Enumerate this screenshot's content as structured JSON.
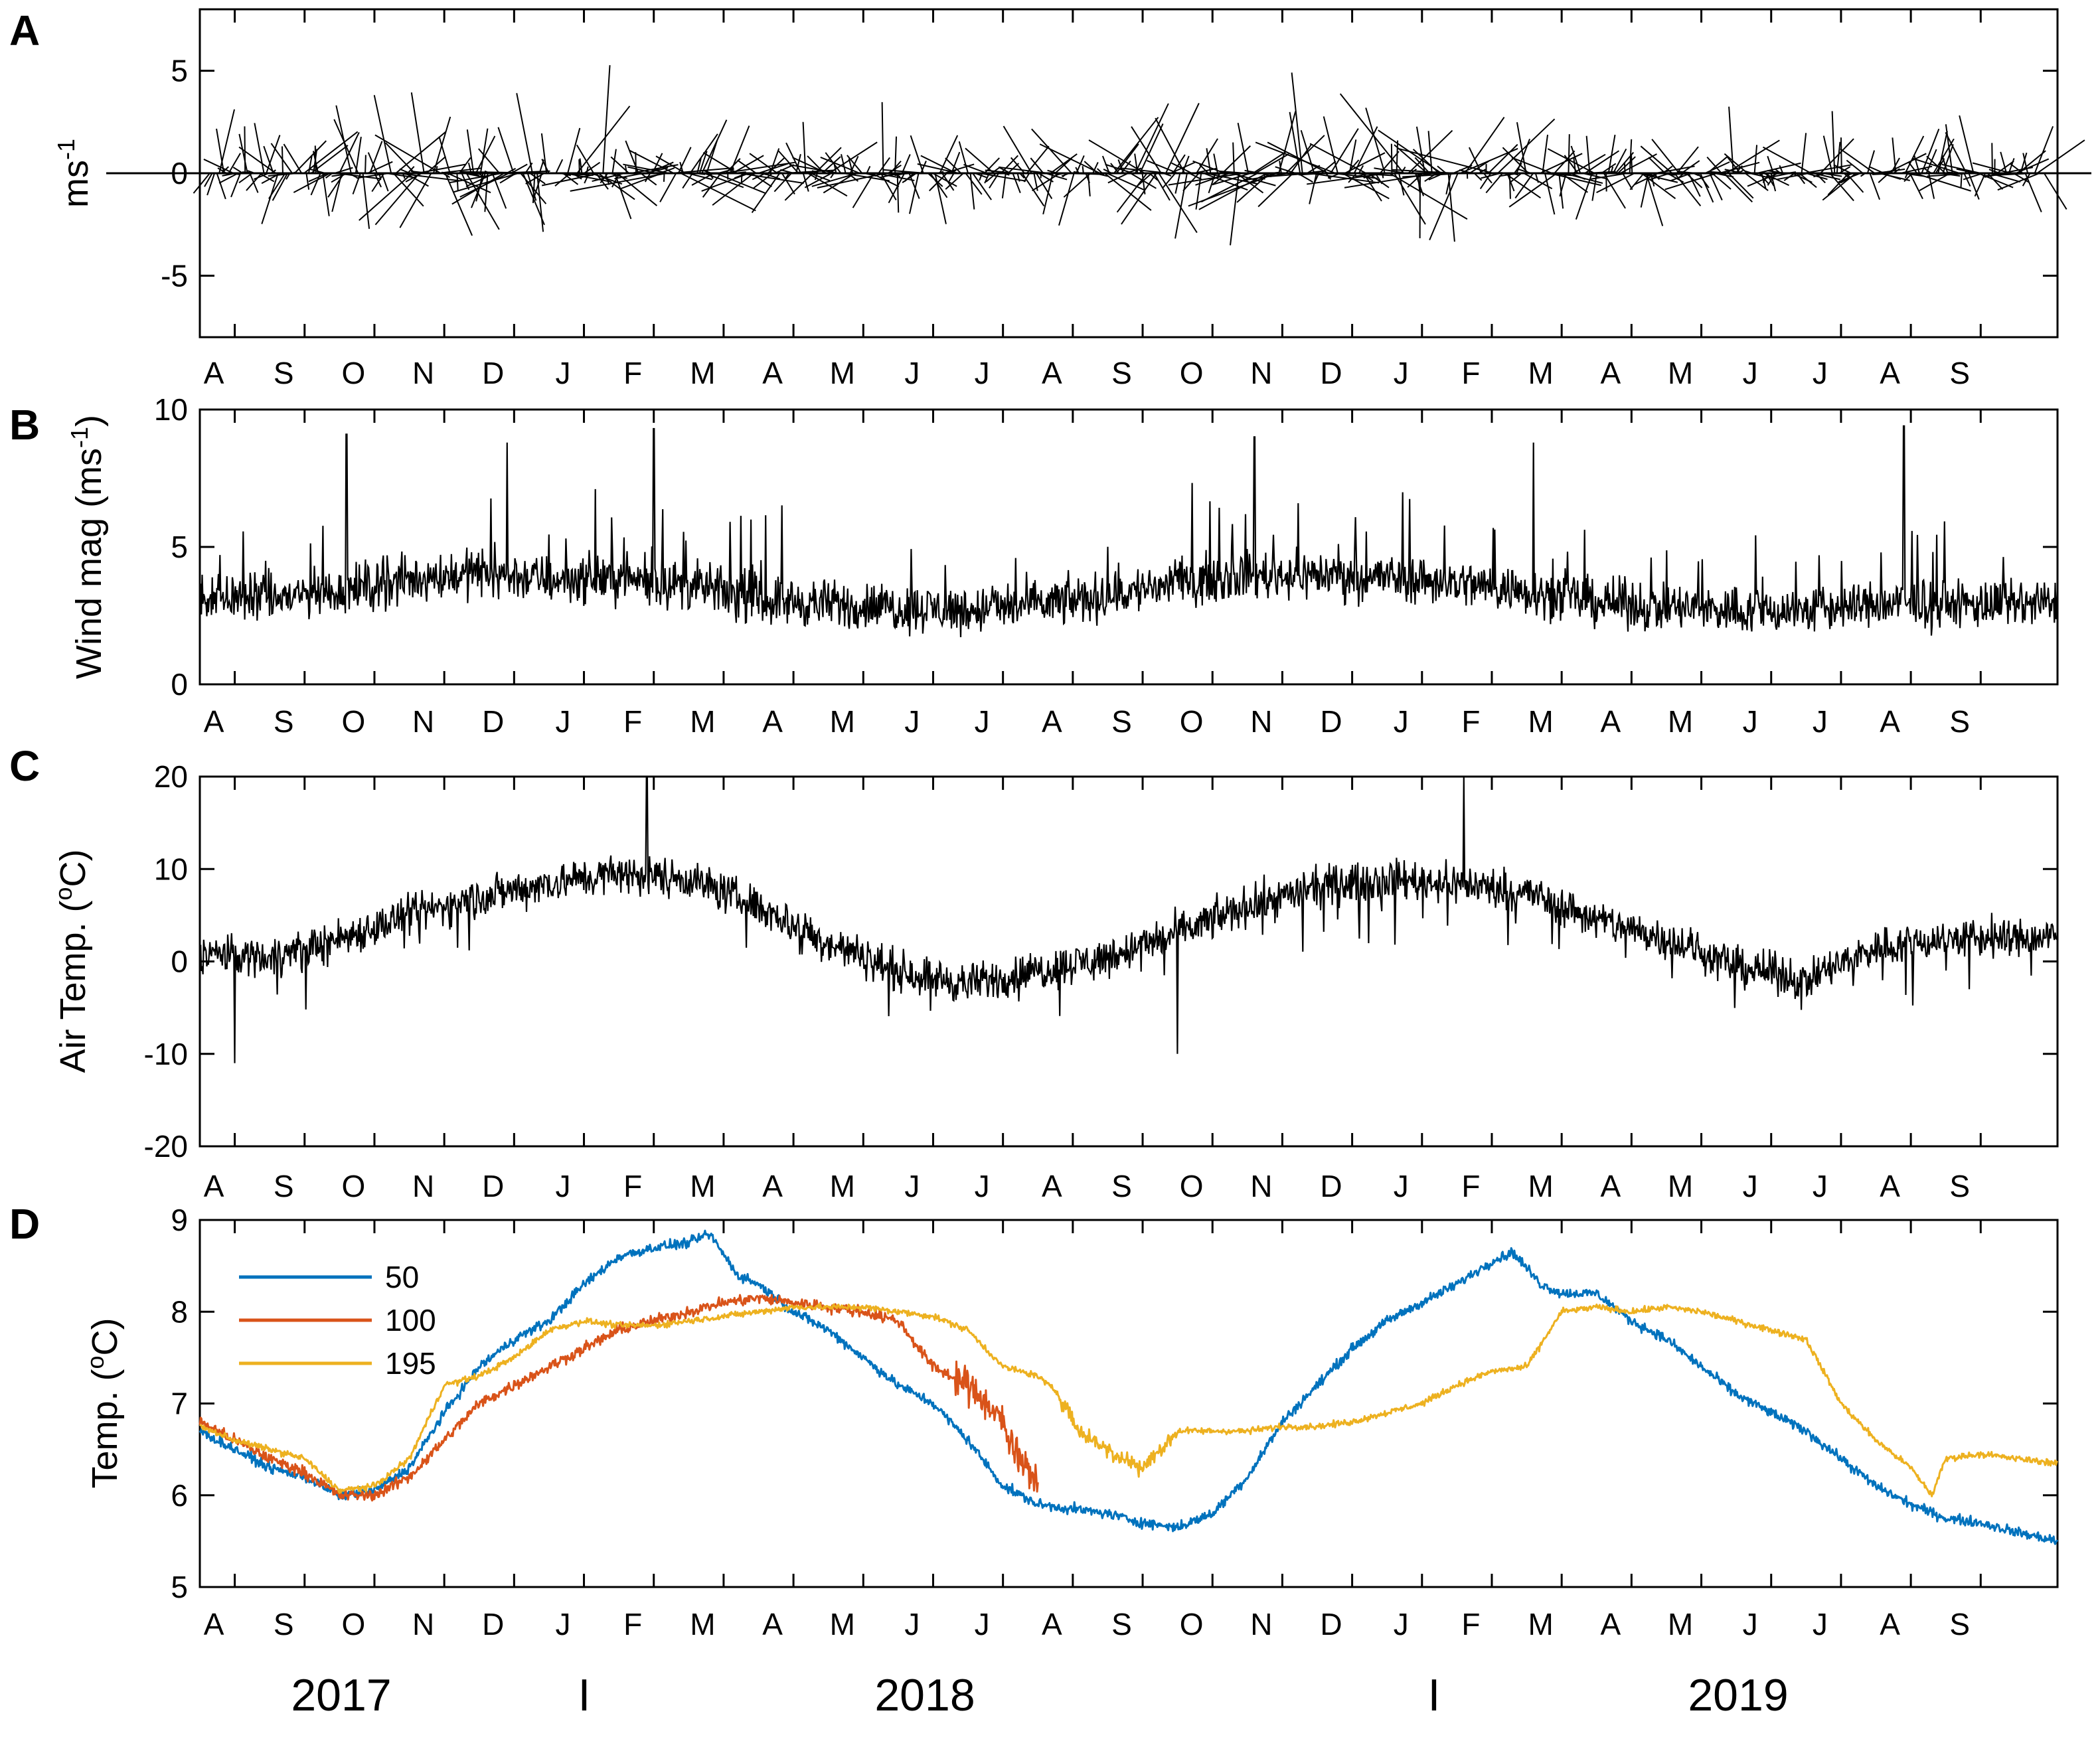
{
  "colors": {
    "axis": "#000000",
    "series_50": "#0072BD",
    "series_100": "#D95319",
    "series_195": "#EDB120"
  },
  "month_sequence": [
    "A",
    "S",
    "O",
    "N",
    "D",
    "J",
    "F",
    "M",
    "A",
    "M",
    "J",
    "J",
    "A",
    "S",
    "O",
    "N",
    "D",
    "J",
    "F",
    "M",
    "A",
    "M",
    "J",
    "J",
    "A",
    "S"
  ],
  "year_labels": {
    "y2017": "2017",
    "y2018": "2018",
    "y2019": "2019",
    "separator": "I"
  },
  "chart_data": [
    {
      "panel": "A",
      "type": "line",
      "subtype": "wind-stick-plot",
      "ylabel": "ms-1",
      "ylabel_base": "ms",
      "ylabel_sup": "-1",
      "yticks": [
        "5",
        "0",
        "-5"
      ],
      "ytick_values": [
        5,
        0,
        -5
      ],
      "ylim": [
        -8,
        8
      ],
      "xlim_months": [
        0,
        26.6
      ],
      "x_tick_labels": [
        "A",
        "S",
        "O",
        "N",
        "D",
        "J",
        "F",
        "M",
        "A",
        "M",
        "J",
        "J",
        "A",
        "S",
        "O",
        "N",
        "D",
        "J",
        "F",
        "M",
        "A",
        "M",
        "J",
        "J",
        "A",
        "S"
      ],
      "stick_count": 780,
      "envelope_ms": [
        4.0,
        3.8,
        4.2,
        5.2,
        5.6,
        5.4,
        5.8,
        5.2,
        4.2,
        4.0,
        3.6,
        3.2,
        3.6,
        4.2,
        5.2,
        5.8,
        5.6,
        6.2,
        5.6,
        4.8,
        4.0,
        3.8,
        3.6,
        3.6,
        4.0,
        4.0
      ]
    },
    {
      "panel": "B",
      "type": "line",
      "ylabel": "Wind mag (ms-1)",
      "ylabel_base": "Wind mag (ms",
      "ylabel_sup": "-1",
      "ylabel_close": ")",
      "yticks": [
        "10",
        "5",
        "0"
      ],
      "ytick_values": [
        10,
        5,
        0
      ],
      "ylim": [
        0,
        10
      ],
      "x_tick_labels": [
        "A",
        "S",
        "O",
        "N",
        "D",
        "J",
        "F",
        "M",
        "A",
        "M",
        "J",
        "J",
        "A",
        "S",
        "O",
        "N",
        "D",
        "J",
        "F",
        "M",
        "A",
        "M",
        "J",
        "J",
        "A",
        "S"
      ],
      "monthly_mean_ms": [
        3.2,
        3.1,
        3.4,
        3.8,
        4.1,
        3.8,
        3.9,
        3.6,
        3.1,
        2.9,
        2.8,
        2.7,
        2.9,
        3.2,
        3.7,
        4.0,
        4.0,
        3.9,
        3.7,
        3.4,
        3.0,
        2.8,
        2.7,
        2.7,
        2.9,
        2.9
      ],
      "peaks": [
        {
          "month": 2.1,
          "value": 9.1
        },
        {
          "month": 4.4,
          "value": 8.8
        },
        {
          "month": 6.5,
          "value": 9.3
        },
        {
          "month": 15.1,
          "value": 9.0
        },
        {
          "month": 19.1,
          "value": 8.8
        },
        {
          "month": 24.4,
          "value": 9.4
        }
      ]
    },
    {
      "panel": "C",
      "type": "line",
      "ylabel": "Air Temp. (oC)",
      "ylabel_base": "Air Temp. (",
      "ylabel_sup": "o",
      "ylabel_close": "C)",
      "yticks": [
        "20",
        "10",
        "0",
        "-10",
        "-20"
      ],
      "ytick_values": [
        20,
        10,
        0,
        -10,
        -20
      ],
      "ylim": [
        -20,
        20
      ],
      "x_tick_labels": [
        "A",
        "S",
        "O",
        "N",
        "D",
        "J",
        "F",
        "M",
        "A",
        "M",
        "J",
        "J",
        "A",
        "S",
        "O",
        "N",
        "D",
        "J",
        "F",
        "M",
        "A",
        "M",
        "J",
        "J",
        "A",
        "S"
      ],
      "monthly_mean_C": [
        1.0,
        0.5,
        2.5,
        5.0,
        7.0,
        8.5,
        9.5,
        9.0,
        6.0,
        2.0,
        -1.0,
        -2.5,
        -1.0,
        0.5,
        3.0,
        6.0,
        8.0,
        9.0,
        8.5,
        7.5,
        4.5,
        2.5,
        -0.5,
        -2.0,
        1.5,
        2.5
      ],
      "spikes": [
        {
          "month": 18.1,
          "value": 22.0
        },
        {
          "month": 6.4,
          "value": 20.0
        },
        {
          "month": 0.5,
          "value": -11.0
        },
        {
          "month": 14.0,
          "value": -10.0
        }
      ]
    },
    {
      "panel": "D",
      "type": "line",
      "ylabel": "Temp. (oC)",
      "ylabel_base": "Temp. (",
      "ylabel_sup": "o",
      "ylabel_close": "C)",
      "yticks": [
        "9",
        "8",
        "7",
        "6",
        "5"
      ],
      "ytick_values": [
        9,
        8,
        7,
        6,
        5
      ],
      "ylim": [
        5,
        9
      ],
      "x_tick_labels": [
        "A",
        "S",
        "O",
        "N",
        "D",
        "J",
        "F",
        "M",
        "A",
        "M",
        "J",
        "J",
        "A",
        "S",
        "O",
        "N",
        "D",
        "J",
        "F",
        "M",
        "A",
        "M",
        "J",
        "J",
        "A",
        "S"
      ],
      "legend_position": "top-left",
      "x_unit": "months since start of August 2017",
      "series": [
        {
          "name": "50",
          "points": [
            [
              0,
              6.7
            ],
            [
              0.5,
              6.5
            ],
            [
              1.0,
              6.3
            ],
            [
              1.5,
              6.2
            ],
            [
              2.0,
              6.0
            ],
            [
              2.5,
              6.05
            ],
            [
              3.0,
              6.3
            ],
            [
              3.5,
              6.9
            ],
            [
              4.0,
              7.4
            ],
            [
              4.5,
              7.7
            ],
            [
              5.0,
              7.9
            ],
            [
              5.5,
              8.3
            ],
            [
              6.0,
              8.6
            ],
            [
              6.5,
              8.7
            ],
            [
              7.0,
              8.75
            ],
            [
              7.3,
              8.85
            ],
            [
              7.7,
              8.4
            ],
            [
              8.0,
              8.3
            ],
            [
              8.5,
              8.0
            ],
            [
              9.0,
              7.8
            ],
            [
              9.5,
              7.5
            ],
            [
              10.0,
              7.2
            ],
            [
              10.5,
              7.0
            ],
            [
              11.0,
              6.6
            ],
            [
              11.5,
              6.1
            ],
            [
              12.0,
              5.9
            ],
            [
              12.5,
              5.85
            ],
            [
              13.0,
              5.8
            ],
            [
              13.5,
              5.7
            ],
            [
              14.0,
              5.65
            ],
            [
              14.5,
              5.8
            ],
            [
              15.0,
              6.2
            ],
            [
              15.5,
              6.8
            ],
            [
              16.0,
              7.2
            ],
            [
              16.5,
              7.6
            ],
            [
              17.0,
              7.9
            ],
            [
              17.5,
              8.1
            ],
            [
              18.0,
              8.3
            ],
            [
              18.5,
              8.55
            ],
            [
              18.8,
              8.65
            ],
            [
              19.2,
              8.3
            ],
            [
              19.5,
              8.2
            ],
            [
              20.0,
              8.2
            ],
            [
              20.5,
              7.9
            ],
            [
              21.0,
              7.7
            ],
            [
              21.5,
              7.4
            ],
            [
              22.0,
              7.1
            ],
            [
              22.5,
              6.9
            ],
            [
              23.0,
              6.7
            ],
            [
              23.5,
              6.4
            ],
            [
              24.0,
              6.1
            ],
            [
              24.5,
              5.9
            ],
            [
              25.0,
              5.75
            ],
            [
              25.5,
              5.7
            ],
            [
              26.0,
              5.6
            ],
            [
              26.6,
              5.5
            ]
          ]
        },
        {
          "name": "100",
          "points": [
            [
              0,
              6.8
            ],
            [
              0.5,
              6.6
            ],
            [
              1.0,
              6.4
            ],
            [
              1.5,
              6.25
            ],
            [
              2.0,
              6.0
            ],
            [
              2.5,
              6.0
            ],
            [
              3.0,
              6.2
            ],
            [
              3.5,
              6.6
            ],
            [
              4.0,
              7.0
            ],
            [
              4.5,
              7.2
            ],
            [
              5.0,
              7.4
            ],
            [
              5.5,
              7.6
            ],
            [
              6.0,
              7.8
            ],
            [
              6.5,
              7.9
            ],
            [
              7.0,
              8.0
            ],
            [
              7.5,
              8.1
            ],
            [
              8.0,
              8.15
            ],
            [
              8.5,
              8.1
            ],
            [
              9.0,
              8.05
            ],
            [
              9.5,
              8.0
            ],
            [
              10.0,
              7.9
            ],
            [
              10.5,
              7.4
            ],
            [
              11.0,
              7.2
            ],
            [
              11.5,
              6.8
            ],
            [
              11.8,
              6.3
            ],
            [
              12.0,
              6.2
            ]
          ]
        },
        {
          "name": "195",
          "points": [
            [
              0,
              6.75
            ],
            [
              0.5,
              6.6
            ],
            [
              1.0,
              6.5
            ],
            [
              1.5,
              6.4
            ],
            [
              2.0,
              6.05
            ],
            [
              2.5,
              6.1
            ],
            [
              3.0,
              6.4
            ],
            [
              3.5,
              7.2
            ],
            [
              4.0,
              7.3
            ],
            [
              4.5,
              7.5
            ],
            [
              5.0,
              7.8
            ],
            [
              5.5,
              7.9
            ],
            [
              6.0,
              7.85
            ],
            [
              6.5,
              7.85
            ],
            [
              7.0,
              7.9
            ],
            [
              7.5,
              7.95
            ],
            [
              8.0,
              8.0
            ],
            [
              8.5,
              8.05
            ],
            [
              9.0,
              8.05
            ],
            [
              9.5,
              8.05
            ],
            [
              10.0,
              8.0
            ],
            [
              10.5,
              7.95
            ],
            [
              11.0,
              7.8
            ],
            [
              11.5,
              7.4
            ],
            [
              12.0,
              7.3
            ],
            [
              12.3,
              7.1
            ],
            [
              12.6,
              6.7
            ],
            [
              13.0,
              6.5
            ],
            [
              13.5,
              6.3
            ],
            [
              14.0,
              6.7
            ],
            [
              14.5,
              6.7
            ],
            [
              15.0,
              6.7
            ],
            [
              15.5,
              6.75
            ],
            [
              16.0,
              6.75
            ],
            [
              16.5,
              6.8
            ],
            [
              17.0,
              6.9
            ],
            [
              17.5,
              7.0
            ],
            [
              18.0,
              7.2
            ],
            [
              18.5,
              7.35
            ],
            [
              19.0,
              7.4
            ],
            [
              19.5,
              8.0
            ],
            [
              20.0,
              8.05
            ],
            [
              20.5,
              8.0
            ],
            [
              21.0,
              8.05
            ],
            [
              21.5,
              8.0
            ],
            [
              22.0,
              7.9
            ],
            [
              22.5,
              7.8
            ],
            [
              23.0,
              7.7
            ],
            [
              23.5,
              7.0
            ],
            [
              24.0,
              6.6
            ],
            [
              24.5,
              6.3
            ],
            [
              24.8,
              6.0
            ],
            [
              25.0,
              6.4
            ],
            [
              25.5,
              6.45
            ],
            [
              26.0,
              6.4
            ],
            [
              26.6,
              6.35
            ]
          ]
        }
      ]
    }
  ]
}
